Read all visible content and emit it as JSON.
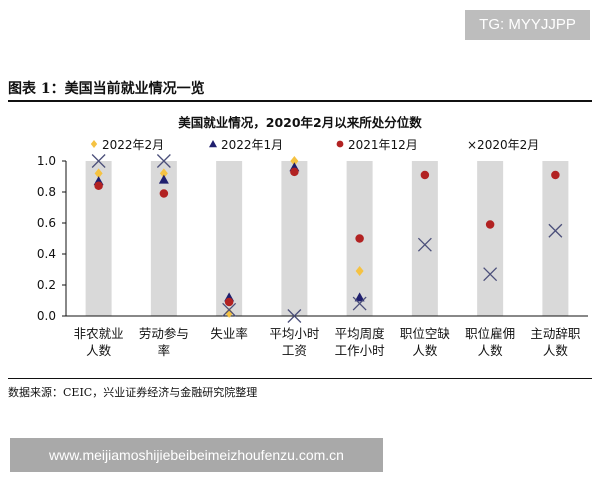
{
  "watermark": "TG: MYYJJPP",
  "figure_title": "图表 1：美国当前就业情况一览",
  "source_note": "数据来源：CEIC，兴业证券经济与金融研究院整理",
  "footer_url": "www.meijiamoshijiebeibeimeizhoufenzu.com.cn",
  "colors": {
    "band": "#d9d9d9",
    "s2022_02": "#f5c242",
    "s2022_01": "#1f1f6e",
    "s2021_12": "#b22222",
    "s2020_02": "#4b4f7a"
  },
  "chart_data": {
    "type": "scatter",
    "title": "美国就业情况，2020年2月以来所处分位数",
    "categories": [
      [
        "非农就业",
        "人数"
      ],
      [
        "劳动参与",
        "率"
      ],
      [
        "失业率"
      ],
      [
        "平均小时",
        "工资"
      ],
      [
        "平均周度",
        "工作小时"
      ],
      [
        "职位空缺",
        "人数"
      ],
      [
        "职位雇佣",
        "人数"
      ],
      [
        "主动辞职",
        "人数"
      ]
    ],
    "ylim": [
      0,
      1.0
    ],
    "yticks": [
      "0.0",
      "0.2",
      "0.4",
      "0.6",
      "0.8",
      "1.0"
    ],
    "grid": false,
    "legend_position": "top",
    "series": [
      {
        "name": "2022年2月",
        "marker": "diamond",
        "values": [
          0.92,
          0.92,
          0.02,
          1.0,
          0.29,
          null,
          null,
          null
        ]
      },
      {
        "name": "2022年1月",
        "marker": "triangle",
        "values": [
          0.87,
          0.88,
          0.12,
          0.96,
          0.12,
          null,
          null,
          null
        ]
      },
      {
        "name": "2021年12月",
        "marker": "circle",
        "values": [
          0.84,
          0.79,
          0.09,
          0.93,
          0.5,
          0.91,
          0.59,
          0.91
        ]
      },
      {
        "name": "×2020年2月",
        "marker": "x",
        "values": [
          1.0,
          1.0,
          0.04,
          0.0,
          0.08,
          0.46,
          0.27,
          0.55
        ]
      }
    ]
  }
}
